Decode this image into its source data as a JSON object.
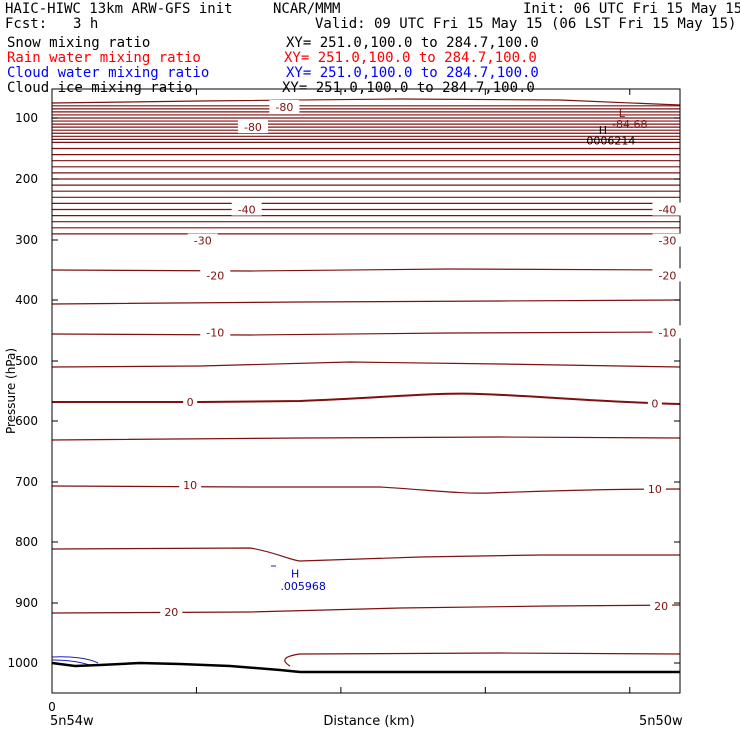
{
  "header": {
    "title_left": "HAIC-HIWC 13km ARW-GFS init",
    "org": "NCAR/MMM",
    "init": "Init: 06 UTC Fri 15 May 15",
    "fcst_label": "Fcst:",
    "fcst_value": "3 h",
    "valid": "Valid: 09 UTC Fri 15 May 15 (06 LST Fri 15 May 15)"
  },
  "fields": [
    {
      "name": "Snow mixing ratio",
      "xy": "XY= 251.0,100.0 to 284.7,100.0",
      "color": "#000000"
    },
    {
      "name": "Rain water mixing ratio",
      "xy": "XY= 251.0,100.0 to 284.7,100.0",
      "color": "#ff0000"
    },
    {
      "name": "Cloud water mixing ratio",
      "xy": "XY= 251.0,100.0 to 284.7,100.0",
      "color": "#0000ff"
    },
    {
      "name": "Cloud ice mixing ratio",
      "xy": "XY= 251.0,100.0 to 284.7,100.0",
      "color": "#000000"
    }
  ],
  "colors": {
    "temperature": "#7f1010",
    "cloud_water": "#2020c0",
    "terrain": "#000000"
  },
  "chart_data": {
    "type": "line",
    "ylabel": "Pressure (hPa)",
    "xlabel": "Distance (km)",
    "yticks": [
      "100",
      "200",
      "300",
      "400",
      "500",
      "600",
      "700",
      "800",
      "900",
      "1000"
    ],
    "xtick_label": "0",
    "x_left_label": "5n54w",
    "x_right_label": "5n50w",
    "isotherm_labels": [
      {
        "text": "-80",
        "p": 82,
        "x": 0.37
      },
      {
        "text": "-80",
        "p": 115,
        "x": 0.32
      },
      {
        "text": "-40",
        "p": 250,
        "x": 0.31
      },
      {
        "text": "-40",
        "p": 250,
        "x": 0.98
      },
      {
        "text": "-30",
        "p": 301,
        "x": 0.24
      },
      {
        "text": "-30",
        "p": 301,
        "x": 0.98
      },
      {
        "text": "-20",
        "p": 359,
        "x": 0.26
      },
      {
        "text": "-20",
        "p": 359,
        "x": 0.98
      },
      {
        "text": "-10",
        "p": 453,
        "x": 0.26
      },
      {
        "text": "-10",
        "p": 453,
        "x": 0.98
      },
      {
        "text": "0",
        "p": 568,
        "x": 0.22
      },
      {
        "text": "0",
        "p": 571,
        "x": 0.96
      },
      {
        "text": "10",
        "p": 705,
        "x": 0.22
      },
      {
        "text": "10",
        "p": 712,
        "x": 0.96
      },
      {
        "text": "20",
        "p": 915,
        "x": 0.19
      },
      {
        "text": "20",
        "p": 905,
        "x": 0.97
      }
    ],
    "extrema": [
      {
        "label": "L",
        "value": "-84.68",
        "p_label": 92,
        "p_value": 110,
        "x": 0.92,
        "color": "#7f1010"
      },
      {
        "label": "H",
        "value": "0006214",
        "p_label": 120,
        "p_value": 137,
        "x": 0.89,
        "color": "#000000"
      },
      {
        "label": "H",
        "value": ".005968",
        "p_label": 852,
        "p_value": 872,
        "x": 0.4,
        "color": "#0000c0"
      }
    ],
    "isobar_lines": [
      80,
      85,
      90,
      95,
      100,
      105,
      110,
      115,
      120,
      125,
      130,
      135,
      140,
      150,
      160,
      170,
      180,
      190,
      200,
      210,
      220,
      230,
      240,
      250,
      260,
      270,
      280,
      290
    ]
  }
}
